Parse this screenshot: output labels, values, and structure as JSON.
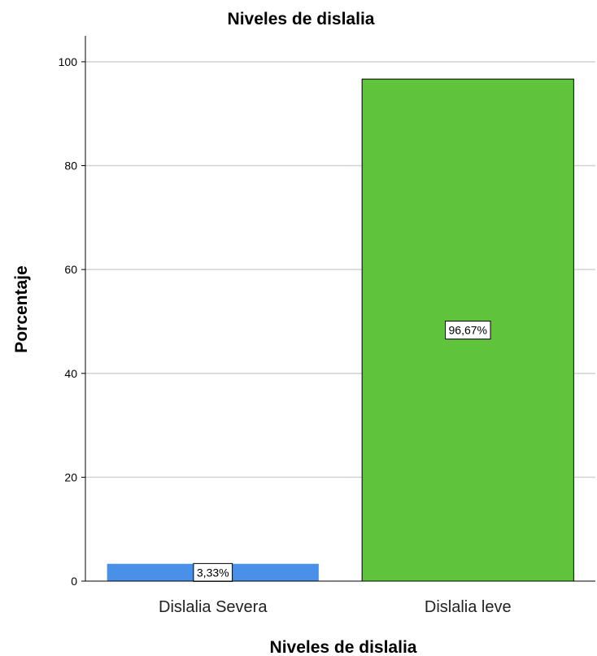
{
  "chart_data": {
    "type": "bar",
    "title": "Niveles de dislalia",
    "xlabel": "Niveles de dislalia",
    "ylabel": "Porcentaje",
    "categories": [
      "Dislalia Severa",
      "Dislalia leve"
    ],
    "values": [
      3.33,
      96.67
    ],
    "data_labels": [
      "3,33%",
      "96,67%"
    ],
    "colors": [
      "#4a8fe8",
      "#5fc43b"
    ],
    "ylim": [
      0,
      105
    ],
    "yticks": [
      0,
      20,
      40,
      60,
      80,
      100
    ],
    "grid": true,
    "legend": "none"
  }
}
